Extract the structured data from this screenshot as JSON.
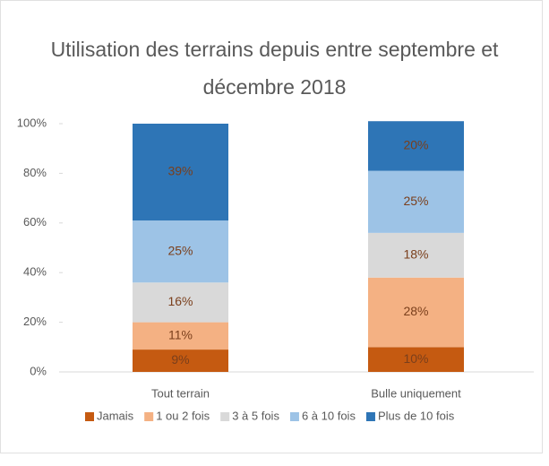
{
  "chart_data": {
    "type": "stacked_bar",
    "title": "Utilisation des terrains depuis entre septembre et décembre 2018",
    "categories": [
      "Tout terrain",
      "Bulle uniquement"
    ],
    "series": [
      {
        "name": "Jamais",
        "color": "#c55a11",
        "values": [
          9,
          10
        ],
        "value_labels": [
          "9%",
          "10%"
        ]
      },
      {
        "name": "1 ou 2 fois",
        "color": "#f4b183",
        "values": [
          11,
          28
        ],
        "value_labels": [
          "11%",
          "28%"
        ]
      },
      {
        "name": "3 à 5 fois",
        "color": "#d9d9d9",
        "values": [
          16,
          18
        ],
        "value_labels": [
          "16%",
          "18%"
        ]
      },
      {
        "name": "6 à 10 fois",
        "color": "#9dc3e6",
        "values": [
          25,
          25
        ],
        "value_labels": [
          "25%",
          "25%"
        ]
      },
      {
        "name": "Plus de 10 fois",
        "color": "#2e75b6",
        "values": [
          39,
          20
        ],
        "value_labels": [
          "39%",
          "20%"
        ]
      }
    ],
    "ylim": [
      0,
      100
    ],
    "yticks": [
      {
        "value": 0,
        "label": "0%"
      },
      {
        "value": 20,
        "label": "20%"
      },
      {
        "value": 40,
        "label": "40%"
      },
      {
        "value": 60,
        "label": "60%"
      },
      {
        "value": 80,
        "label": "80%"
      },
      {
        "value": 100,
        "label": "100%"
      }
    ],
    "legend": "bottom"
  }
}
